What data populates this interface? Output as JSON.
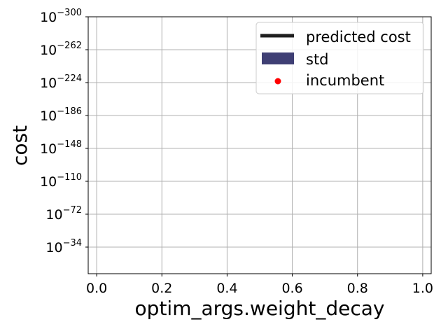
{
  "chart_data": {
    "type": "line",
    "xlabel": "optim_args.weight_decay",
    "ylabel": "cost",
    "y_scale": "log",
    "grid": true,
    "xlim": [
      -0.026,
      1.026
    ],
    "x_ticks": [
      0.0,
      0.2,
      0.4,
      0.6,
      0.8,
      1.0
    ],
    "x_tick_labels": [
      "0.0",
      "0.2",
      "0.4",
      "0.6",
      "0.8",
      "1.0"
    ],
    "y_ticks": [
      {
        "base": "10",
        "exp": "−34"
      },
      {
        "base": "10",
        "exp": "−72"
      },
      {
        "base": "10",
        "exp": "−110"
      },
      {
        "base": "10",
        "exp": "−148"
      },
      {
        "base": "10",
        "exp": "−186"
      },
      {
        "base": "10",
        "exp": "−224"
      },
      {
        "base": "10",
        "exp": "−262"
      },
      {
        "base": "10",
        "exp": "−300"
      }
    ],
    "legend_position": "top-right",
    "series": [
      {
        "name": "predicted cost",
        "kind": "line",
        "color": "#1f1f1f",
        "x": [],
        "y": []
      },
      {
        "name": "std",
        "kind": "band",
        "color": "#3f3f74",
        "x": [],
        "y": []
      },
      {
        "name": "incumbent",
        "kind": "scatter",
        "color": "#ff0000",
        "x": [],
        "y": []
      }
    ]
  }
}
